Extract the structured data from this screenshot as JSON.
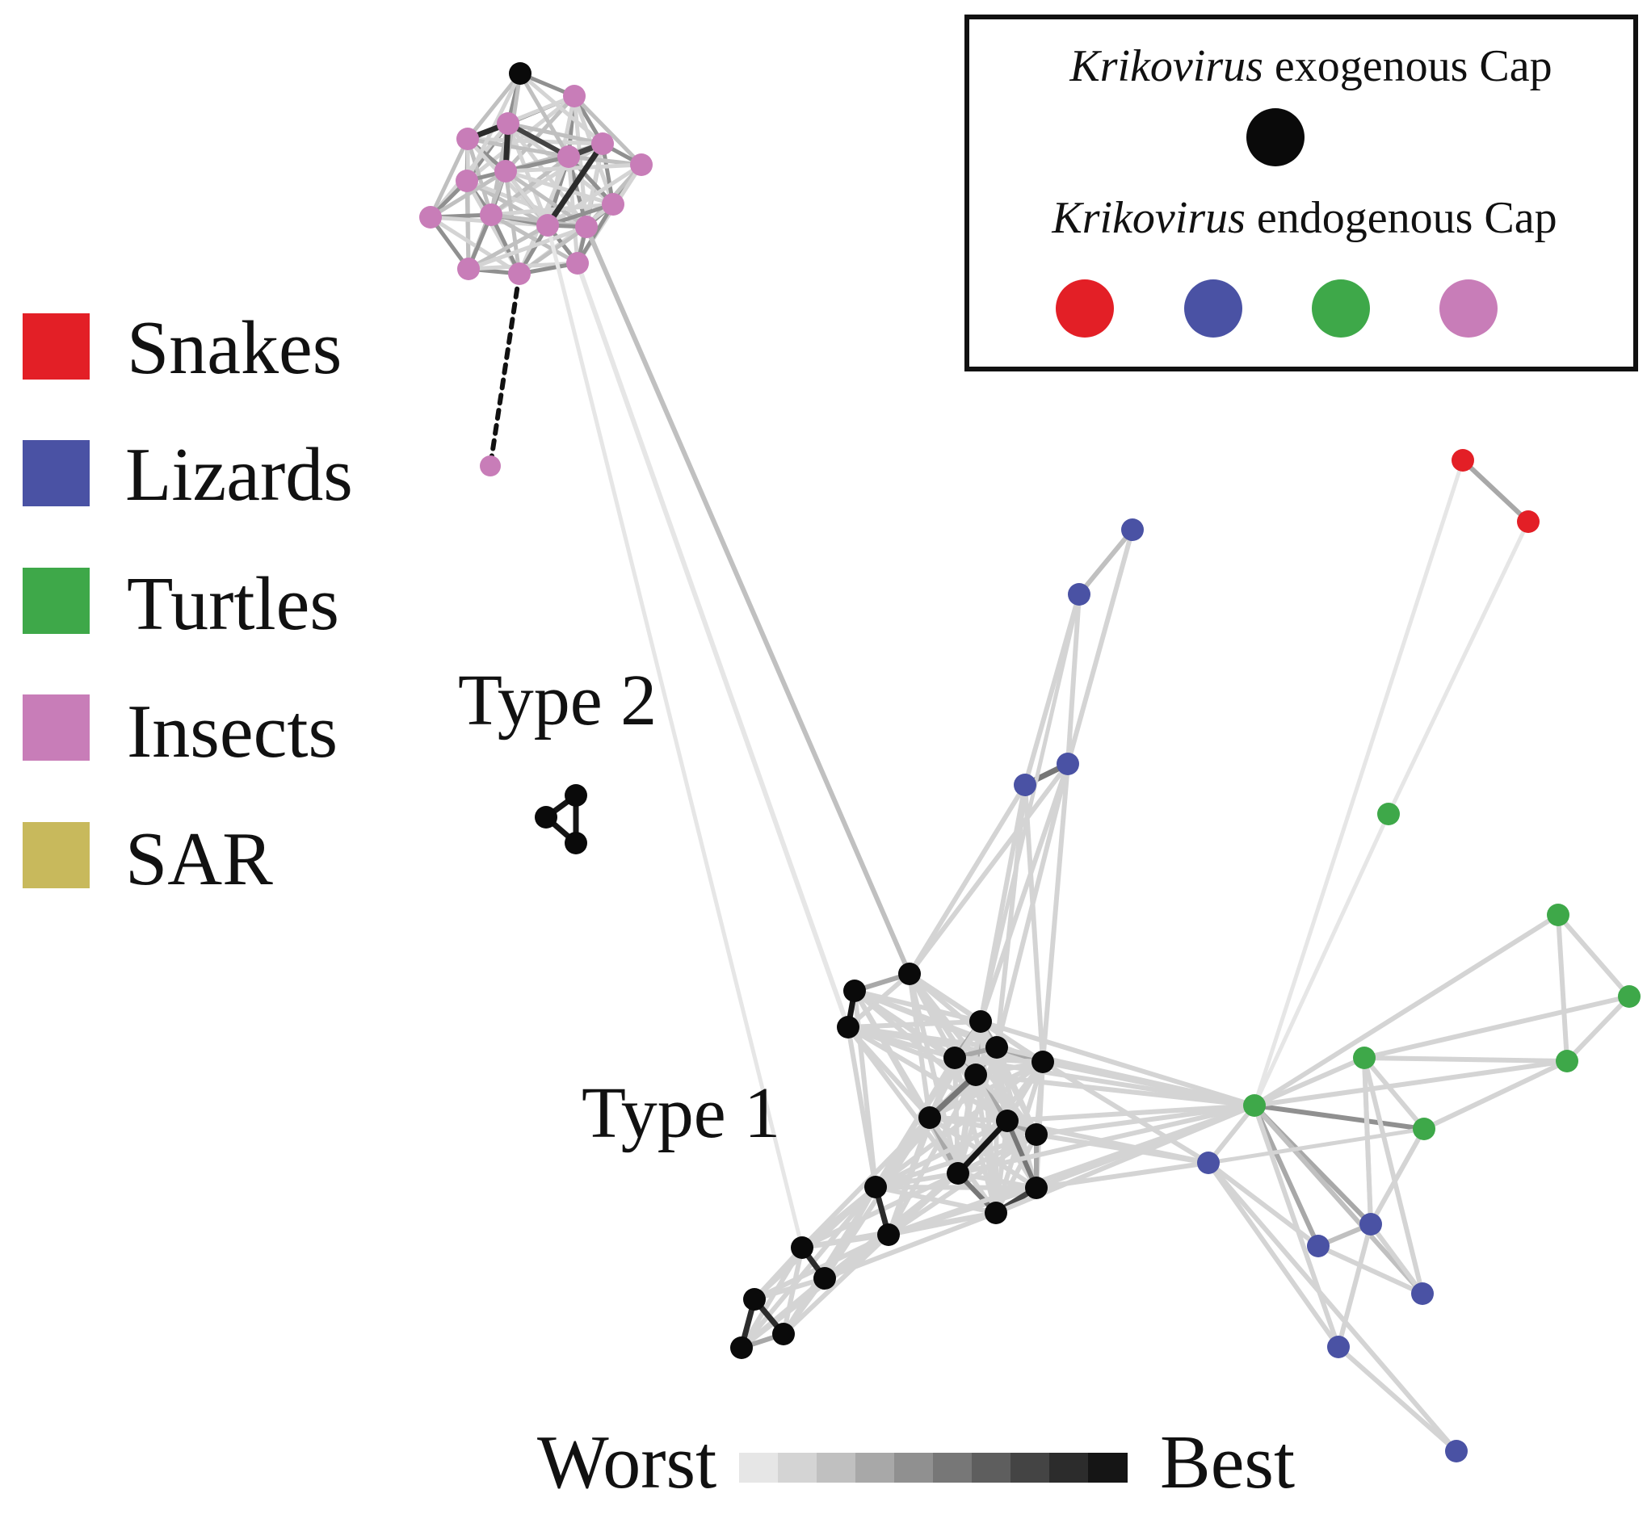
{
  "legend": {
    "items": [
      {
        "label": "Snakes",
        "color": "#e31f26"
      },
      {
        "label": "Lizards",
        "color": "#4a52a4"
      },
      {
        "label": "Turtles",
        "color": "#3ea849"
      },
      {
        "label": "Insects",
        "color": "#c87db8"
      },
      {
        "label": "SAR",
        "color": "#c8b95c"
      }
    ]
  },
  "key": {
    "exogenous_genus": "Krikovirus",
    "exogenous_rest": " exogenous Cap",
    "exogenous_color": "#0a0a0a",
    "endogenous_genus": "Krikovirus",
    "endogenous_rest": " endogenous Cap",
    "endogenous_colors": [
      "#e31f26",
      "#4a52a4",
      "#3ea849",
      "#c87db8"
    ]
  },
  "cluster_labels": {
    "type2": "Type 2",
    "type1": "Type 1"
  },
  "scale": {
    "worst": "Worst",
    "best": "Best",
    "shades": [
      "#e6e6e6",
      "#d4d4d4",
      "#c0c0c0",
      "#a8a8a8",
      "#909090",
      "#777777",
      "#5e5e5e",
      "#444444",
      "#2c2c2c",
      "#151515"
    ]
  },
  "node_colors": {
    "black": "#0a0a0a",
    "red": "#e31f26",
    "blue": "#4a52a4",
    "green": "#3ea849",
    "pink": "#c87db8"
  }
}
